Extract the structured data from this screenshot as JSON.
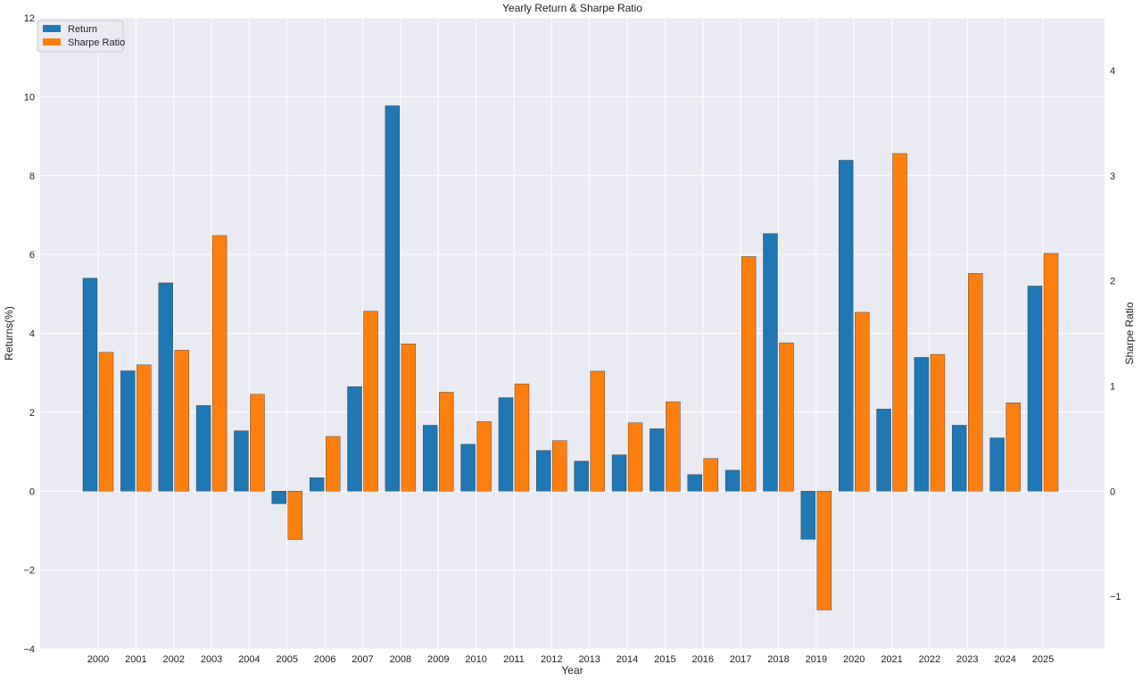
{
  "chart_data": {
    "type": "bar",
    "title": "Yearly Return & Sharpe Ratio",
    "xlabel": "Year",
    "ylabel": "Returns(%)",
    "y2label": "Sharpe Ratio",
    "categories": [
      "2000",
      "2001",
      "2002",
      "2003",
      "2004",
      "2005",
      "2006",
      "2007",
      "2008",
      "2009",
      "2010",
      "2011",
      "2012",
      "2013",
      "2014",
      "2015",
      "2016",
      "2017",
      "2018",
      "2019",
      "2020",
      "2021",
      "2022",
      "2023",
      "2024",
      "2025"
    ],
    "ylim": [
      -4,
      12
    ],
    "y2lim": [
      -1.5,
      4.5
    ],
    "yticks": [
      -4,
      -2,
      0,
      2,
      4,
      6,
      8,
      10,
      12
    ],
    "y2ticks": [
      -1,
      0,
      1,
      2,
      3,
      4
    ],
    "ytick_labels": [
      "−4",
      "−2",
      "0",
      "2",
      "4",
      "6",
      "8",
      "10",
      "12"
    ],
    "y2tick_labels": [
      "−1",
      "0",
      "1",
      "2",
      "3",
      "4"
    ],
    "grid": true,
    "legend_position": "top-left",
    "series": [
      {
        "name": "Return",
        "axis": "left",
        "color": "#1f77b4",
        "values": [
          5.4,
          3.05,
          5.28,
          2.17,
          1.53,
          -0.32,
          0.34,
          2.65,
          9.77,
          1.67,
          1.19,
          2.37,
          1.03,
          0.76,
          0.92,
          1.58,
          0.42,
          0.53,
          6.53,
          -1.22,
          8.39,
          2.08,
          3.39,
          1.67,
          1.35,
          5.2
        ]
      },
      {
        "name": "Sharpe Ratio",
        "axis": "right",
        "color": "#ff7f0e",
        "values": [
          1.32,
          1.2,
          1.34,
          2.43,
          0.92,
          -0.46,
          0.52,
          1.71,
          1.4,
          0.94,
          0.66,
          1.02,
          0.48,
          1.14,
          0.65,
          0.85,
          0.31,
          2.23,
          1.41,
          -1.13,
          1.7,
          3.21,
          1.3,
          2.07,
          0.84,
          2.26
        ]
      }
    ]
  }
}
